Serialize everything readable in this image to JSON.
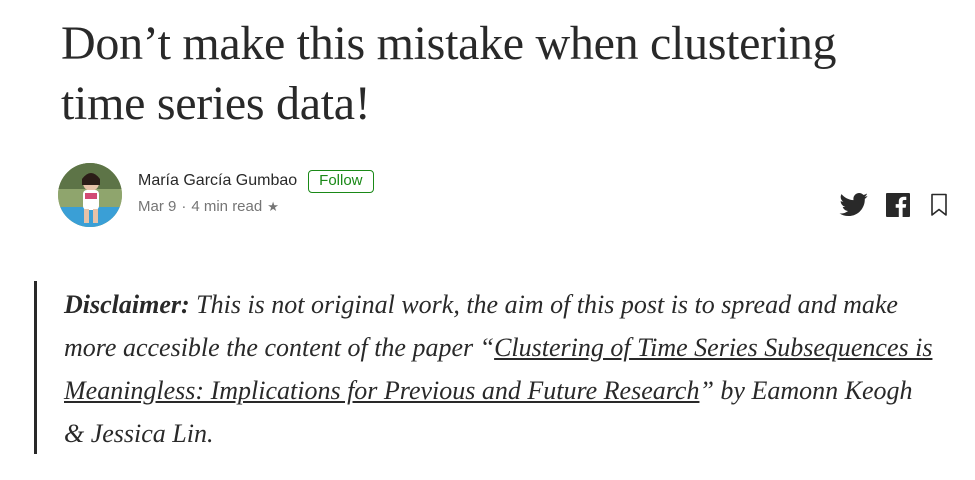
{
  "article": {
    "title": "Don’t make this mistake when clustering time series data!"
  },
  "author": {
    "name": "María García Gumbao",
    "follow_label": "Follow",
    "date": "Mar 9",
    "separator": "·",
    "read_time": "4 min read",
    "star": "★"
  },
  "share": {
    "icons": [
      "twitter-icon",
      "facebook-icon",
      "bookmark-icon"
    ]
  },
  "disclaimer": {
    "label": "Disclaimer:",
    "text_1": " This is not original work, the aim of this post is to spread and make more accesible the content of the paper “",
    "link_text": "Clustering of Time Series Subsequences is Meaningless: Implications for Previous and Future Research",
    "text_2": "” by Eamonn Keogh & Jessica Lin."
  },
  "colors": {
    "text": "#292929",
    "muted": "#757575",
    "follow": "#1a8917"
  }
}
